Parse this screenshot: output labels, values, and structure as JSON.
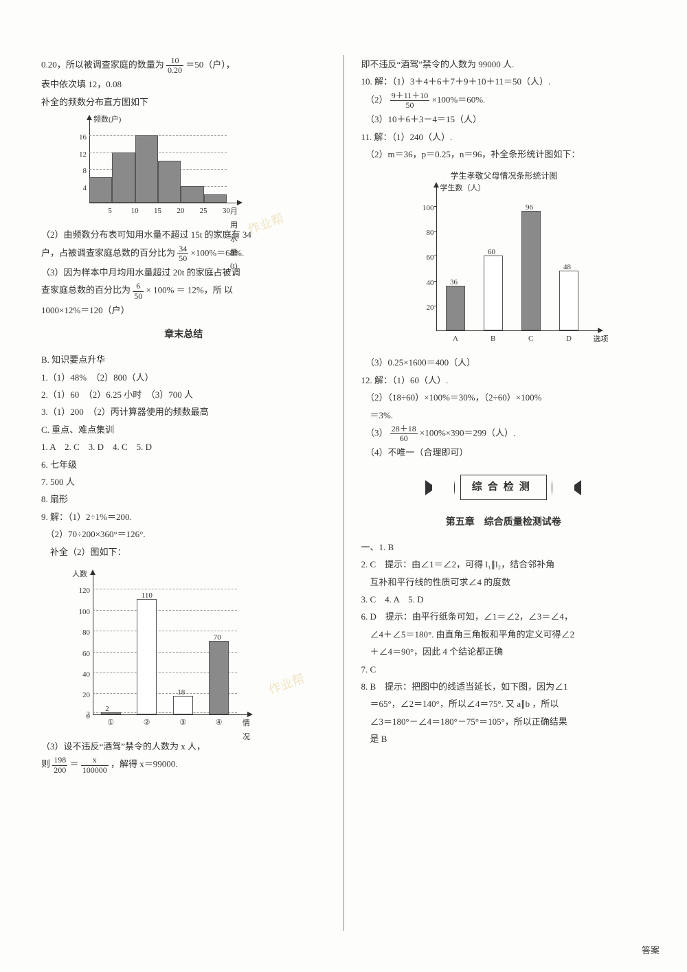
{
  "left": {
    "p1_a": "0.20，所以被调查家庭的数量为",
    "p1_frac_n": "10",
    "p1_frac_d": "0.20",
    "p1_b": "＝50（户），",
    "p2": "表中依次填 12，0.08",
    "p3": "补全的频数分布直方图如下",
    "chart1": {
      "ylabel": "频数(户)",
      "xlabel": "月用水量(t)",
      "yticks": [
        "4",
        "8",
        "12",
        "16"
      ],
      "yvals": [
        4,
        8,
        12,
        16
      ],
      "xticks": [
        "5",
        "10",
        "15",
        "20",
        "25",
        "30"
      ],
      "bars": [
        6,
        12,
        16,
        10,
        4,
        2
      ],
      "ymax": 18
    },
    "p4": "（2）由频数分布表可知用水量不超过 15t 的家庭有 34",
    "p5_a": "户，占被调查家庭总数的百分比为",
    "p5_frac_n": "34",
    "p5_frac_d": "50",
    "p5_b": "×100%＝68%.",
    "p6": "（3）因为样本中月均用水量超过 20t 的家庭占被调",
    "p7_a": "查家庭总数的百分比为",
    "p7_frac_n": "6",
    "p7_frac_d": "50",
    "p7_b": "× 100% ＝ 12%，所 以",
    "p8": "1000×12%＝120（户）",
    "title1": "章末总结",
    "b1": "B. 知识要点升华",
    "b2": "1.（1）48%　（2）800（人）",
    "b3": "2.（1）60　（2）6.25 小时　（3）700 人",
    "b4": "3.（1）200　（2）丙计算器使用的频数最高",
    "b5": "C. 重点、难点集训",
    "b6": "1. A　2. C　3. D　4. C　5. D",
    "b7": "6. 七年级",
    "b8": "7. 500 人",
    "b9": "8. 扇形",
    "b10": "9. 解：（1）2÷1%＝200.",
    "b11": "　（2）70÷200×360°＝126°.",
    "b12": "　补全（2）图如下：",
    "chart2": {
      "ylabel": "人数",
      "xlabel": "情况",
      "yticks": [
        "0",
        "2",
        "20",
        "40",
        "60",
        "80",
        "100",
        "120"
      ],
      "yvals": [
        0,
        2,
        20,
        40,
        60,
        80,
        100,
        120
      ],
      "xticks": [
        "①",
        "②",
        "③",
        "④"
      ],
      "bars": [
        2,
        110,
        18,
        70
      ],
      "barlabels": [
        "2",
        "110",
        "18",
        "70"
      ],
      "fills": [
        "gray",
        "white",
        "white",
        "gray"
      ],
      "ymax": 128
    },
    "b13": "（3）设不违反“酒驾”禁令的人数为 x 人，",
    "b14_a": "则",
    "b14_f1n": "198",
    "b14_f1d": "200",
    "b14_b": "＝",
    "b14_f2n": "x",
    "b14_f2d": "100000",
    "b14_c": "，解得 x＝99000."
  },
  "right": {
    "r1": "即不违反“酒驾”禁令的人数为 99000 人.",
    "r2": "10. 解：（1）3＋4＋6＋7＋9＋10＋11＝50（人）.",
    "r3_a": "　（2）",
    "r3_fn": "9＋11＋10",
    "r3_fd": "50",
    "r3_b": "×100%＝60%.",
    "r4": "　（3）10＋6＋3－4＝15（人）",
    "r5": "11. 解：（1）240（人）.",
    "r6": "　（2）m＝36，p＝0.25，n＝96，补全条形统计图如下：",
    "chart3": {
      "title": "学生孝敬父母情况条形统计图",
      "ylabel": "学生数（人）",
      "xlabel": "选项",
      "yticks": [
        "20",
        "40",
        "60",
        "80",
        "100"
      ],
      "yvals": [
        20,
        40,
        60,
        80,
        100
      ],
      "xticks": [
        "A",
        "B",
        "C",
        "D"
      ],
      "bars": [
        36,
        60,
        96,
        48
      ],
      "barlabels": [
        "36",
        "60",
        "96",
        "48"
      ],
      "fills": [
        "gray",
        "white",
        "gray",
        "white"
      ],
      "ymax": 110
    },
    "r7": "　（3）0.25×1600＝400（人）",
    "r8": "12. 解：（1）60（人）.",
    "r9": "　（2）（18÷60）×100%＝30%，（2÷60）×100%",
    "r10": "　＝3%.",
    "r11_a": "　（3）",
    "r11_fn": "28＋18",
    "r11_fd": "60",
    "r11_b": "×100%×390＝299（人）.",
    "r12": "　（4）不唯一（合理即可）",
    "title2": "综合检测",
    "title3": "第五章　综合质量检测试卷",
    "c1": "一、1. B",
    "c2": "2. C　提示：由∠1＝∠2，可得 l₁∥l₂，结合邻补角",
    "c3": "　互补和平行线的性质可求∠4 的度数",
    "c4": "3. C　4. A　5. D",
    "c5": "6. D　提示：由平行纸条可知，∠1＝∠2，∠3＝∠4，",
    "c6": "　∠4＋∠5＝180°. 由直角三角板和平角的定义可得∠2",
    "c7": "　＋∠4＝90°，因此 4 个结论都正确",
    "c8": "7. C",
    "c9": "8. B　提示：把图中的线适当延长，如下图，因为∠1",
    "c10": "　＝65°，∠2＝140°，所以∠4＝75°. 又 a∥b ，所以",
    "c11": "　∠3＝180°－∠4＝180°－75°＝105°，所以正确结果",
    "c12": "　是 B"
  },
  "footer": "答案",
  "wm1": "作业帮",
  "wm2": "作业帮"
}
